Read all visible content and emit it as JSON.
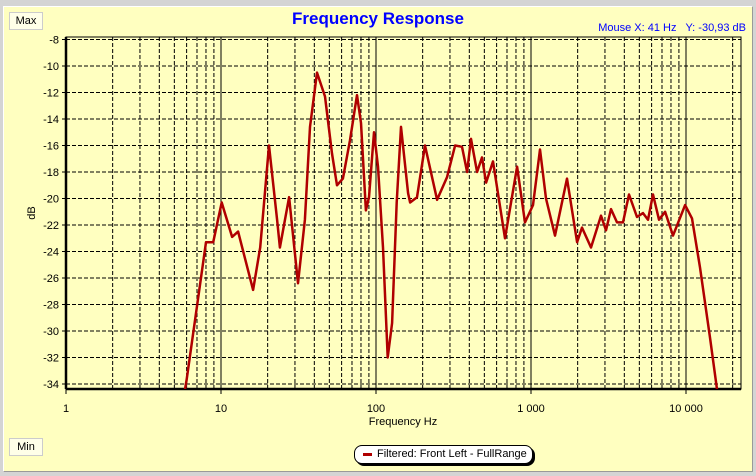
{
  "header": {
    "title": "Frequency Response",
    "mouse_readout": "Mouse X: 41 Hz   Y: -30,93 dB"
  },
  "buttons": {
    "max_label": "Max",
    "min_label": "Min"
  },
  "legend": {
    "label": "Filtered: Front Left - FullRange"
  },
  "colors": {
    "background": "#ffffc0",
    "series": "#b00000",
    "title": "#0000ff"
  },
  "chart_data": {
    "type": "line",
    "title": "Frequency Response",
    "xlabel": "Frequency Hz",
    "ylabel": "dB",
    "x_scale": "log",
    "xlim": [
      1,
      22600
    ],
    "ylim": [
      -34.4,
      -7.8
    ],
    "grid": true,
    "legend_placement": "bottom-center",
    "x_ticks": [
      {
        "v": 1,
        "label": "1"
      },
      {
        "v": 10,
        "label": "10"
      },
      {
        "v": 100,
        "label": "100"
      },
      {
        "v": 1000,
        "label": "1 000"
      },
      {
        "v": 10000,
        "label": "10 000"
      }
    ],
    "y_ticks": [
      -8,
      -10,
      -12,
      -14,
      -16,
      -18,
      -20,
      -22,
      -24,
      -26,
      -28,
      -30,
      -32,
      -34
    ],
    "series": [
      {
        "name": "Filtered: Front Left - FullRange",
        "color": "#b00000",
        "x": [
          5.86,
          6.0,
          8.0,
          8.9,
          10.1,
          11.8,
          12.9,
          16.1,
          17.9,
          20.4,
          23.0,
          24.0,
          27.5,
          31.4,
          34.8,
          37.5,
          41.6,
          46.9,
          52.0,
          56.0,
          61.2,
          68.0,
          75.4,
          80.0,
          86.1,
          90.1,
          97.1,
          103,
          111,
          119,
          127,
          136,
          145,
          161,
          166,
          184,
          207,
          248,
          287,
          324,
          359,
          387,
          410,
          449,
          483,
          513,
          569,
          680,
          813,
          915,
          1030,
          1143,
          1250,
          1429,
          1708,
          1982,
          2133,
          2438,
          2830,
          3048,
          3281,
          3589,
          3925,
          4290,
          4830,
          5283,
          5690,
          6124,
          6699,
          7328,
          8247,
          9862,
          10940,
          12310,
          14290,
          15850
        ],
        "y": [
          -34.4,
          -33.7,
          -23.3,
          -23.3,
          -20.3,
          -22.9,
          -22.5,
          -26.9,
          -23.7,
          -16.0,
          -21.6,
          -23.7,
          -19.9,
          -26.4,
          -21.6,
          -14.6,
          -10.5,
          -12.3,
          -16.6,
          -19.0,
          -18.5,
          -15.6,
          -12.2,
          -14.3,
          -20.9,
          -19.9,
          -15.0,
          -17.6,
          -23.7,
          -32.0,
          -29.4,
          -20.3,
          -14.6,
          -19.6,
          -20.3,
          -19.9,
          -16.0,
          -20.1,
          -18.4,
          -16.0,
          -16.1,
          -18.0,
          -15.5,
          -18.0,
          -16.9,
          -18.8,
          -17.2,
          -23.0,
          -17.6,
          -21.8,
          -20.5,
          -16.3,
          -20.0,
          -22.8,
          -18.5,
          -23.3,
          -22.2,
          -23.7,
          -21.3,
          -22.4,
          -20.8,
          -21.8,
          -21.8,
          -19.7,
          -21.4,
          -21.1,
          -21.6,
          -19.7,
          -21.6,
          -21.0,
          -22.8,
          -20.5,
          -21.5,
          -25.2,
          -30.5,
          -34.4
        ]
      }
    ]
  }
}
